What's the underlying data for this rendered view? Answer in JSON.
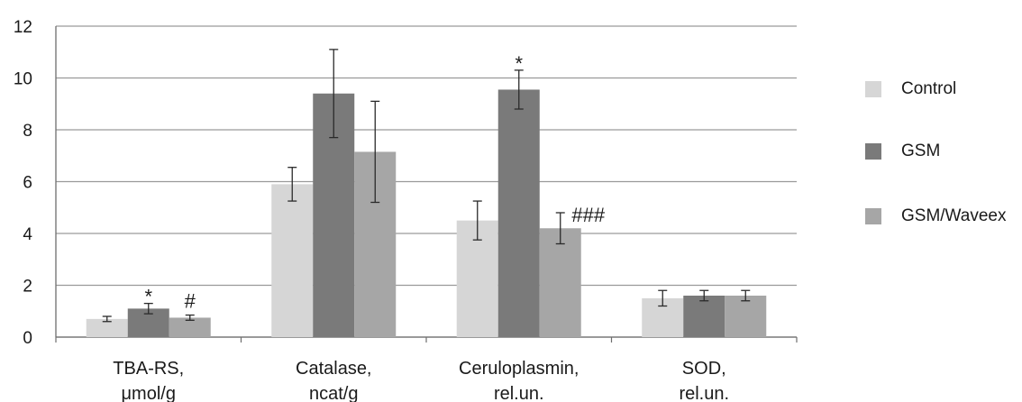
{
  "chart_data": {
    "type": "bar",
    "categories": [
      [
        "TBA-RS,",
        "μmol/g"
      ],
      [
        "Catalase,",
        "ncat/g"
      ],
      [
        "Ceruloplasmin,",
        "rel.un."
      ],
      [
        "SOD,",
        "rel.un."
      ]
    ],
    "series": [
      {
        "name": "Control",
        "color": "#d6d6d6",
        "values": [
          0.7,
          5.9,
          4.5,
          1.5
        ],
        "errors": [
          0.1,
          0.65,
          0.75,
          0.3
        ]
      },
      {
        "name": "GSM",
        "color": "#7a7a7a",
        "values": [
          1.1,
          9.4,
          9.55,
          1.6
        ],
        "errors": [
          0.2,
          1.7,
          0.75,
          0.2
        ]
      },
      {
        "name": "GSM/Waveex",
        "color": "#a6a6a6",
        "values": [
          0.75,
          7.15,
          4.2,
          1.6
        ],
        "errors": [
          0.1,
          1.95,
          0.6,
          0.2
        ]
      }
    ],
    "annotations": [
      {
        "category": 0,
        "series": 1,
        "text": "*"
      },
      {
        "category": 0,
        "series": 2,
        "text": "#"
      },
      {
        "category": 2,
        "series": 1,
        "text": "*"
      },
      {
        "category": 2,
        "series": 2,
        "text": "###"
      }
    ],
    "yticks": [
      "0",
      "2",
      "4",
      "6",
      "8",
      "10",
      "12"
    ],
    "ylim": [
      0,
      12
    ],
    "grid": true,
    "legend_position": "right"
  }
}
